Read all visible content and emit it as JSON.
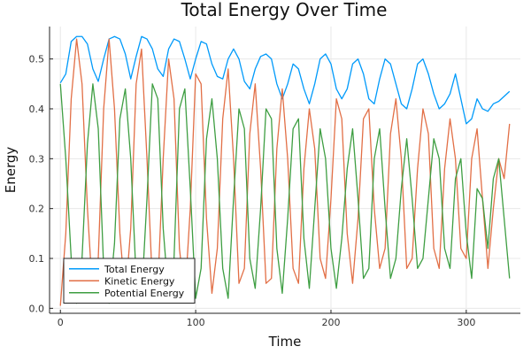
{
  "chart_data": {
    "type": "line",
    "title": "Total Energy Over Time",
    "xlabel": "Time",
    "ylabel": "Energy",
    "xlim": [
      -8,
      340
    ],
    "ylim": [
      -0.01,
      0.565
    ],
    "xticks": [
      0,
      100,
      200,
      300
    ],
    "xtick_labels": [
      "0",
      "100",
      "200",
      "300"
    ],
    "yticks": [
      0.0,
      0.1,
      0.2,
      0.3,
      0.4,
      0.5
    ],
    "ytick_labels": [
      "0.0",
      "0.1",
      "0.2",
      "0.3",
      "0.4",
      "0.5"
    ],
    "grid": true,
    "legend_position": "bottom-left",
    "x": [
      0,
      4,
      8,
      12,
      16,
      20,
      24,
      28,
      32,
      36,
      40,
      44,
      48,
      52,
      56,
      60,
      64,
      68,
      72,
      76,
      80,
      84,
      88,
      92,
      96,
      100,
      104,
      108,
      112,
      116,
      120,
      124,
      128,
      132,
      136,
      140,
      144,
      148,
      152,
      156,
      160,
      164,
      168,
      172,
      176,
      180,
      184,
      188,
      192,
      196,
      200,
      204,
      208,
      212,
      216,
      220,
      224,
      228,
      232,
      236,
      240,
      244,
      248,
      252,
      256,
      260,
      264,
      268,
      272,
      276,
      280,
      284,
      288,
      292,
      296,
      300,
      304,
      308,
      312,
      316,
      320,
      324,
      328,
      332
    ],
    "series": [
      {
        "name": "Total Energy",
        "color": "#009AFA",
        "values": [
          0.452,
          0.47,
          0.535,
          0.545,
          0.545,
          0.53,
          0.48,
          0.455,
          0.5,
          0.54,
          0.545,
          0.54,
          0.51,
          0.46,
          0.505,
          0.545,
          0.54,
          0.52,
          0.48,
          0.465,
          0.52,
          0.54,
          0.535,
          0.5,
          0.46,
          0.5,
          0.535,
          0.53,
          0.49,
          0.465,
          0.46,
          0.5,
          0.52,
          0.5,
          0.455,
          0.44,
          0.48,
          0.505,
          0.51,
          0.5,
          0.45,
          0.42,
          0.45,
          0.49,
          0.48,
          0.44,
          0.41,
          0.45,
          0.5,
          0.51,
          0.49,
          0.44,
          0.42,
          0.44,
          0.49,
          0.5,
          0.47,
          0.42,
          0.41,
          0.46,
          0.5,
          0.49,
          0.45,
          0.41,
          0.4,
          0.44,
          0.49,
          0.5,
          0.47,
          0.43,
          0.4,
          0.41,
          0.43,
          0.47,
          0.42,
          0.37,
          0.38,
          0.42,
          0.4,
          0.395,
          0.41,
          0.415,
          0.425,
          0.435
        ]
      },
      {
        "name": "Kinetic Energy",
        "color": "#E26F46",
        "values": [
          0.005,
          0.15,
          0.42,
          0.54,
          0.45,
          0.2,
          0.02,
          0.1,
          0.4,
          0.54,
          0.4,
          0.15,
          0.02,
          0.16,
          0.45,
          0.52,
          0.3,
          0.05,
          0.04,
          0.3,
          0.5,
          0.42,
          0.12,
          0.02,
          0.2,
          0.47,
          0.45,
          0.18,
          0.03,
          0.12,
          0.38,
          0.48,
          0.3,
          0.05,
          0.08,
          0.35,
          0.45,
          0.28,
          0.05,
          0.06,
          0.32,
          0.44,
          0.3,
          0.08,
          0.05,
          0.28,
          0.4,
          0.32,
          0.1,
          0.06,
          0.22,
          0.42,
          0.38,
          0.15,
          0.05,
          0.18,
          0.38,
          0.4,
          0.2,
          0.08,
          0.12,
          0.35,
          0.42,
          0.3,
          0.08,
          0.1,
          0.28,
          0.4,
          0.35,
          0.12,
          0.08,
          0.28,
          0.38,
          0.3,
          0.12,
          0.1,
          0.3,
          0.36,
          0.22,
          0.08,
          0.2,
          0.3,
          0.26,
          0.37
        ]
      },
      {
        "name": "Potential Energy",
        "color": "#3E9E42",
        "values": [
          0.45,
          0.3,
          0.1,
          0.01,
          0.1,
          0.33,
          0.45,
          0.36,
          0.08,
          0.01,
          0.13,
          0.38,
          0.44,
          0.3,
          0.06,
          0.02,
          0.22,
          0.45,
          0.42,
          0.16,
          0.02,
          0.1,
          0.4,
          0.44,
          0.24,
          0.02,
          0.08,
          0.34,
          0.42,
          0.3,
          0.08,
          0.02,
          0.22,
          0.4,
          0.36,
          0.1,
          0.04,
          0.2,
          0.4,
          0.38,
          0.12,
          0.03,
          0.18,
          0.36,
          0.38,
          0.14,
          0.04,
          0.2,
          0.36,
          0.3,
          0.12,
          0.04,
          0.14,
          0.28,
          0.36,
          0.22,
          0.06,
          0.08,
          0.3,
          0.36,
          0.2,
          0.06,
          0.1,
          0.24,
          0.34,
          0.22,
          0.08,
          0.1,
          0.22,
          0.34,
          0.3,
          0.12,
          0.08,
          0.26,
          0.3,
          0.15,
          0.06,
          0.24,
          0.22,
          0.12,
          0.26,
          0.3,
          0.18,
          0.06
        ]
      }
    ]
  }
}
